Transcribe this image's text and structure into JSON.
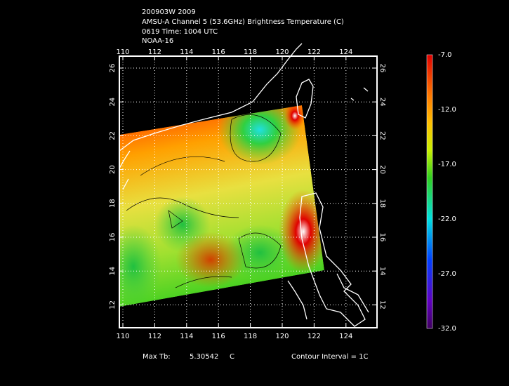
{
  "header": {
    "lines": [
      "200903W 2009",
      "AMSU-A Channel 5 (53.6GHz) Brightness Temperature (C)",
      "0619 Time: 1004 UTC",
      "NOAA-16"
    ]
  },
  "map": {
    "lon_ticks": [
      110,
      112,
      114,
      116,
      118,
      120,
      122,
      124
    ],
    "lat_ticks": [
      12,
      14,
      16,
      18,
      20,
      22,
      24,
      26
    ]
  },
  "colorbar": {
    "labels": [
      "-7.0",
      "-12.0",
      "-17.0",
      "-22.0",
      "-27.0",
      "-32.0"
    ]
  },
  "footer": {
    "max_label": "Max Tb:",
    "max_value": "5.30542",
    "max_unit": "C",
    "contour": "Contour Interval = 1C"
  }
}
